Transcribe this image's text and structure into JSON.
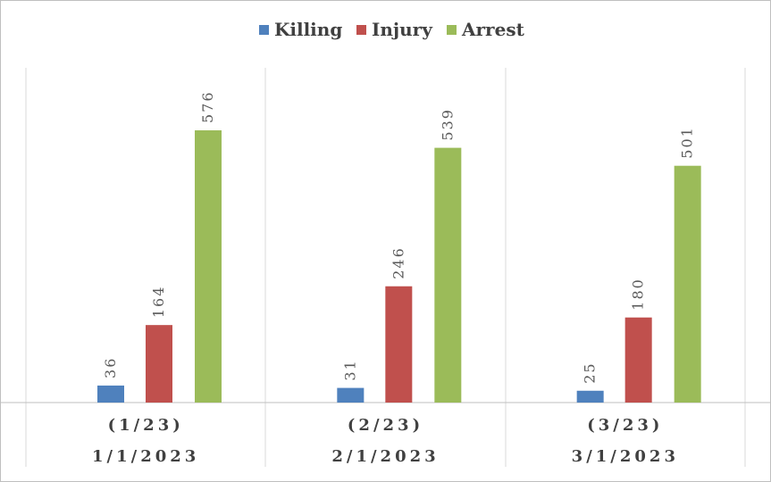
{
  "chart_data": {
    "type": "bar",
    "title": "",
    "xlabel": "",
    "ylabel": "",
    "categories": [
      "(1/23)",
      "(2/23)",
      "(3/23)"
    ],
    "category_dates": [
      "1/1/2023",
      "2/1/2023",
      "3/1/2023"
    ],
    "series": [
      {
        "name": "Killing",
        "color": "#4f81bd",
        "values": [
          36,
          31,
          25
        ]
      },
      {
        "name": "Injury",
        "color": "#c0504d",
        "values": [
          164,
          246,
          180
        ]
      },
      {
        "name": "Arrest",
        "color": "#9bbb59",
        "values": [
          576,
          539,
          501
        ]
      }
    ],
    "ylim": [
      0,
      600
    ],
    "grid": false,
    "legend_position": "top",
    "data_labels": true,
    "data_label_rotation": "vertical"
  }
}
